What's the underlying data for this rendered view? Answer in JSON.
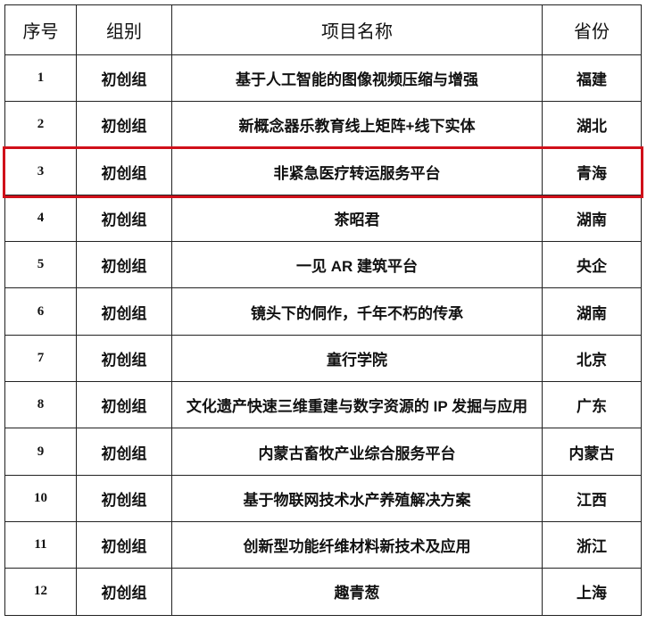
{
  "headers": [
    "序号",
    "组别",
    "项目名称",
    "省份"
  ],
  "rows": [
    {
      "no": "1",
      "group": "初创组",
      "name": "基于人工智能的图像视频压缩与增强",
      "province": "福建"
    },
    {
      "no": "2",
      "group": "初创组",
      "name": "新概念器乐教育线上矩阵+线下实体",
      "province": "湖北"
    },
    {
      "no": "3",
      "group": "初创组",
      "name": "非紧急医疗转运服务平台",
      "province": "青海"
    },
    {
      "no": "4",
      "group": "初创组",
      "name": "茶昭君",
      "province": "湖南"
    },
    {
      "no": "5",
      "group": "初创组",
      "name": "一见 AR 建筑平台",
      "province": "央企"
    },
    {
      "no": "6",
      "group": "初创组",
      "name": "镜头下的侗作，千年不朽的传承",
      "province": "湖南"
    },
    {
      "no": "7",
      "group": "初创组",
      "name": "童行学院",
      "province": "北京"
    },
    {
      "no": "8",
      "group": "初创组",
      "name": "文化遗产快速三维重建与数字资源的 IP 发掘与应用",
      "province": "广东"
    },
    {
      "no": "9",
      "group": "初创组",
      "name": "内蒙古畜牧产业综合服务平台",
      "province": "内蒙古"
    },
    {
      "no": "10",
      "group": "初创组",
      "name": "基于物联网技术水产养殖解决方案",
      "province": "江西"
    },
    {
      "no": "11",
      "group": "初创组",
      "name": "创新型功能纤维材料新技术及应用",
      "province": "浙江"
    },
    {
      "no": "12",
      "group": "初创组",
      "name": "趣青葱",
      "province": "上海"
    }
  ],
  "highlight": {
    "row_no": "3",
    "color": "#d0101a"
  }
}
